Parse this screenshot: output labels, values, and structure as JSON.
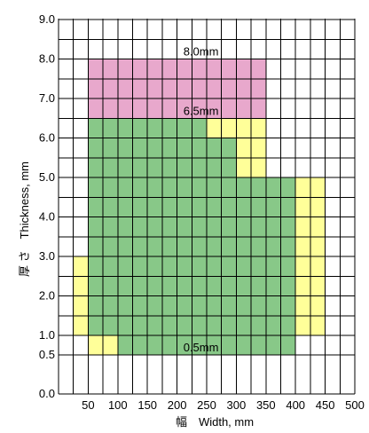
{
  "chart_data": {
    "type": "heatmap",
    "xlabel": "幅　Width, mm",
    "ylabel": "厚 さ　Thickness, mm",
    "xlim": [
      0,
      500
    ],
    "ylim": [
      0,
      9
    ],
    "x_ticks": [
      "50",
      "100",
      "150",
      "200",
      "250",
      "300",
      "350",
      "400",
      "450",
      "500"
    ],
    "y_ticks": [
      "0.0",
      "0.5",
      "1.0",
      "2.0",
      "3.0",
      "4.0",
      "5.0",
      "6.0",
      "7.0",
      "8.0",
      "9.0"
    ],
    "grid": true,
    "colors": {
      "pink": "#e8a8cc",
      "green": "#88c888",
      "yellow": "#ffff99",
      "grid": "#000000"
    },
    "regions": [
      {
        "color": "pink",
        "x0": 50,
        "x1": 350,
        "y0": 6.5,
        "y1": 8.0
      },
      {
        "color": "green",
        "x0": 50,
        "x1": 250,
        "y0": 0.5,
        "y1": 6.5
      },
      {
        "color": "green",
        "x0": 250,
        "x1": 300,
        "y0": 0.5,
        "y1": 6.0
      },
      {
        "color": "green",
        "x0": 300,
        "x1": 400,
        "y0": 0.5,
        "y1": 5.0
      },
      {
        "color": "yellow",
        "x0": 250,
        "x1": 350,
        "y0": 6.0,
        "y1": 6.5
      },
      {
        "color": "yellow",
        "x0": 300,
        "x1": 350,
        "y0": 5.0,
        "y1": 6.0
      },
      {
        "color": "yellow",
        "x0": 400,
        "x1": 450,
        "y0": 1.0,
        "y1": 5.0
      },
      {
        "color": "yellow",
        "x0": 25,
        "x1": 50,
        "y0": 1.0,
        "y1": 3.0
      },
      {
        "color": "yellow",
        "x0": 50,
        "x1": 100,
        "y0": 0.5,
        "y1": 1.0
      }
    ],
    "annotations": [
      {
        "text": "8.0mm",
        "x": 200,
        "y": 8.0
      },
      {
        "text": "6.5mm",
        "x": 200,
        "y": 6.5
      },
      {
        "text": "0.5mm",
        "x": 200,
        "y": 0.5
      }
    ]
  }
}
